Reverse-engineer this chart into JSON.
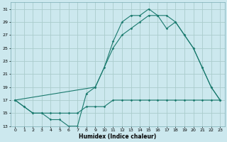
{
  "xlabel": "Humidex (Indice chaleur)",
  "bg_color": "#cce8ee",
  "grid_color": "#aacccc",
  "line_color": "#1a7a6e",
  "xlim": [
    -0.5,
    23.5
  ],
  "ylim": [
    13,
    32
  ],
  "yticks": [
    13,
    15,
    17,
    19,
    21,
    23,
    25,
    27,
    29,
    31
  ],
  "xticks": [
    0,
    1,
    2,
    3,
    4,
    5,
    6,
    7,
    8,
    9,
    10,
    11,
    12,
    13,
    14,
    15,
    16,
    17,
    18,
    19,
    20,
    21,
    22,
    23
  ],
  "line1_x": [
    0,
    1,
    2,
    3,
    4,
    5,
    6,
    7,
    8,
    9,
    10,
    11,
    12,
    13,
    14,
    15,
    16,
    17,
    18,
    19,
    20,
    21,
    22,
    23
  ],
  "line1_y": [
    17,
    16,
    15,
    15,
    14,
    14,
    13,
    13,
    18,
    19,
    22,
    26,
    29,
    30,
    30,
    31,
    30,
    30,
    29,
    27,
    25,
    22,
    19,
    17
  ],
  "line2_x": [
    0,
    9,
    11,
    12,
    13,
    14,
    15,
    16,
    17,
    18,
    19,
    20,
    21,
    22,
    23
  ],
  "line2_y": [
    17,
    19,
    25,
    27,
    28,
    29,
    30,
    30,
    28,
    29,
    27,
    25,
    22,
    19,
    17
  ],
  "line3_x": [
    0,
    1,
    2,
    3,
    4,
    5,
    6,
    7,
    8,
    9,
    10,
    11,
    12,
    13,
    14,
    15,
    16,
    17,
    18,
    19,
    20,
    21,
    22,
    23
  ],
  "line3_y": [
    17,
    16,
    15,
    15,
    15,
    15,
    15,
    15,
    16,
    16,
    16,
    17,
    17,
    17,
    17,
    17,
    17,
    17,
    17,
    17,
    17,
    17,
    17,
    17
  ]
}
